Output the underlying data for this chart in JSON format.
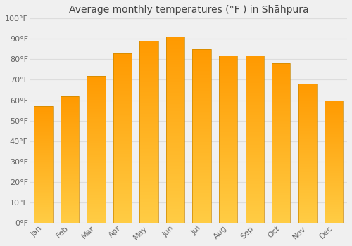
{
  "title": "Average monthly temperatures (°F ) in Shāhpura",
  "months": [
    "Jan",
    "Feb",
    "Mar",
    "Apr",
    "May",
    "Jun",
    "Jul",
    "Aug",
    "Sep",
    "Oct",
    "Nov",
    "Dec"
  ],
  "values": [
    57,
    62,
    72,
    83,
    89,
    91,
    85,
    82,
    82,
    78,
    68,
    60
  ],
  "bar_color_bottom": "#FFCC44",
  "bar_color_top": "#FFA020",
  "bar_edge_color": "#CC8800",
  "ylim": [
    0,
    100
  ],
  "yticks": [
    0,
    10,
    20,
    30,
    40,
    50,
    60,
    70,
    80,
    90,
    100
  ],
  "ytick_labels": [
    "0°F",
    "10°F",
    "20°F",
    "30°F",
    "40°F",
    "50°F",
    "60°F",
    "70°F",
    "80°F",
    "90°F",
    "100°F"
  ],
  "bg_color": "#f0f0f0",
  "grid_color": "#dddddd",
  "title_fontsize": 10,
  "tick_fontsize": 8,
  "tick_color": "#666666",
  "title_color": "#444444"
}
